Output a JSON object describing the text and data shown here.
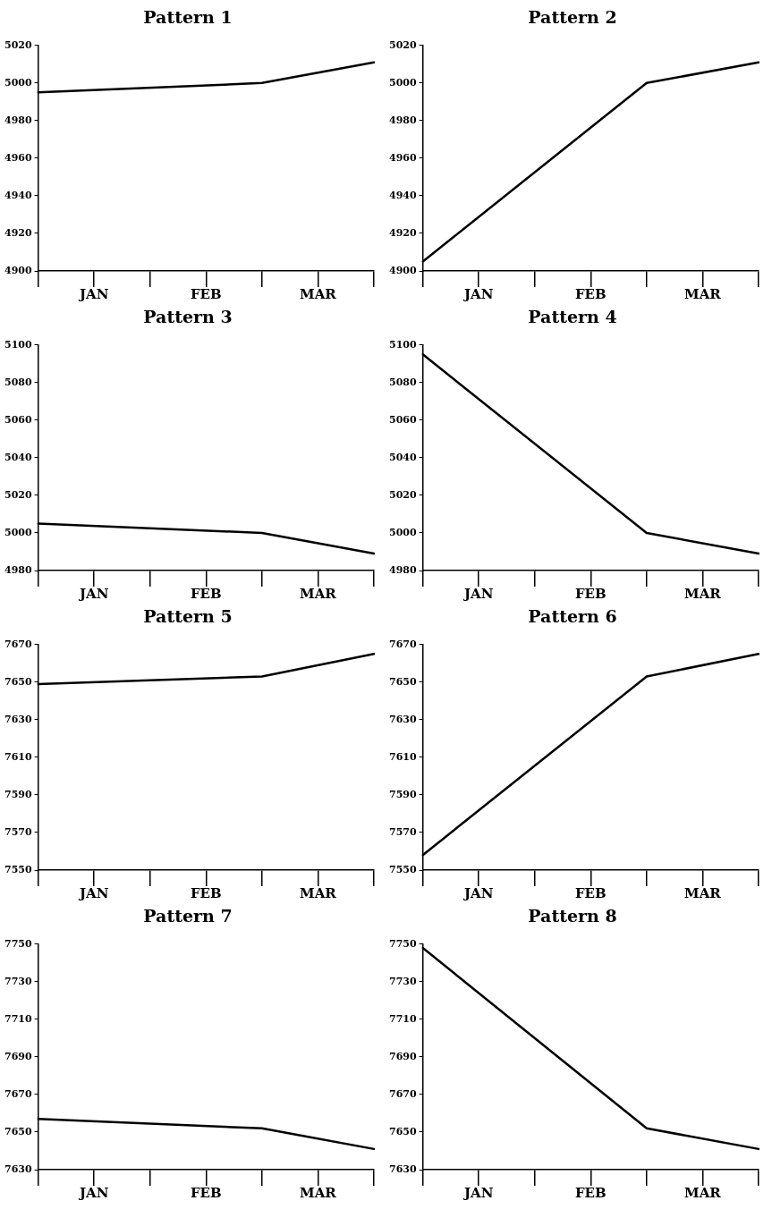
{
  "chart_data": [
    {
      "type": "line",
      "title": "Pattern 1",
      "categories": [
        null,
        "JAN",
        null,
        "FEB",
        null,
        "MAR",
        null
      ],
      "values": [
        4995,
        null,
        null,
        null,
        5000,
        null,
        5011
      ],
      "color": "#000000",
      "ylim": [
        4900,
        5020
      ],
      "yticks": [
        4900,
        4920,
        4940,
        4960,
        4980,
        5000,
        5020
      ]
    },
    {
      "type": "line",
      "title": "Pattern 2",
      "categories": [
        null,
        "JAN",
        null,
        "FEB",
        null,
        "MAR",
        null
      ],
      "values": [
        4905,
        null,
        null,
        null,
        5000,
        null,
        5011
      ],
      "color": "#000000",
      "ylim": [
        4900,
        5020
      ],
      "yticks": [
        4900,
        4920,
        4940,
        4960,
        4980,
        5000,
        5020
      ]
    },
    {
      "type": "line",
      "title": "Pattern 3",
      "categories": [
        null,
        "JAN",
        null,
        "FEB",
        null,
        "MAR",
        null
      ],
      "values": [
        5005,
        null,
        null,
        null,
        5000,
        null,
        4989
      ],
      "color": "#000000",
      "ylim": [
        4980,
        5100
      ],
      "yticks": [
        4980,
        5000,
        5020,
        5040,
        5060,
        5080,
        5100
      ]
    },
    {
      "type": "line",
      "title": "Pattern 4",
      "categories": [
        null,
        "JAN",
        null,
        "FEB",
        null,
        "MAR",
        null
      ],
      "values": [
        5095,
        null,
        null,
        null,
        5000,
        null,
        4989
      ],
      "color": "#000000",
      "ylim": [
        4980,
        5100
      ],
      "yticks": [
        4980,
        5000,
        5020,
        5040,
        5060,
        5080,
        5100
      ]
    },
    {
      "type": "line",
      "title": "Pattern 5",
      "categories": [
        null,
        "JAN",
        null,
        "FEB",
        null,
        "MAR",
        null
      ],
      "values": [
        7649,
        null,
        null,
        null,
        7653,
        null,
        7665
      ],
      "color": "#000000",
      "ylim": [
        7550,
        7670
      ],
      "yticks": [
        7550,
        7570,
        7590,
        7610,
        7630,
        7650,
        7670
      ]
    },
    {
      "type": "line",
      "title": "Pattern 6",
      "categories": [
        null,
        "JAN",
        null,
        "FEB",
        null,
        "MAR",
        null
      ],
      "values": [
        7558,
        null,
        null,
        null,
        7653,
        null,
        7665
      ],
      "color": "#000000",
      "ylim": [
        7550,
        7670
      ],
      "yticks": [
        7550,
        7570,
        7590,
        7610,
        7630,
        7650,
        7670
      ]
    },
    {
      "type": "line",
      "title": "Pattern 7",
      "categories": [
        null,
        "JAN",
        null,
        "FEB",
        null,
        "MAR",
        null
      ],
      "values": [
        7657,
        null,
        null,
        null,
        7652,
        null,
        7641
      ],
      "color": "#000000",
      "ylim": [
        7630,
        7750
      ],
      "yticks": [
        7630,
        7650,
        7670,
        7690,
        7710,
        7730,
        7750
      ]
    },
    {
      "type": "line",
      "title": "Pattern 8",
      "categories": [
        null,
        "JAN",
        null,
        "FEB",
        null,
        "MAR",
        null
      ],
      "values": [
        7748,
        null,
        null,
        null,
        7652,
        null,
        7641
      ],
      "color": "#000000",
      "ylim": [
        7630,
        7750
      ],
      "yticks": [
        7630,
        7650,
        7670,
        7690,
        7710,
        7730,
        7750
      ]
    }
  ]
}
